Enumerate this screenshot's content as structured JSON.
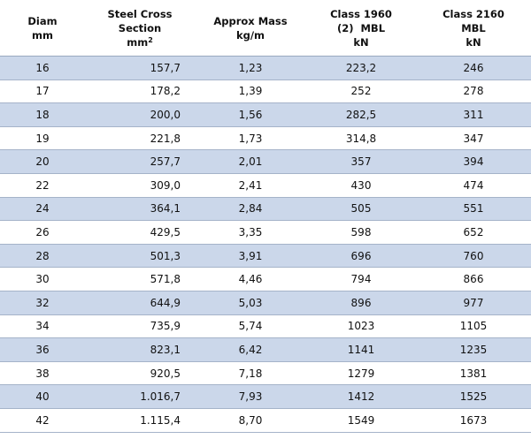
{
  "headers": {
    "diam": [
      "Diam",
      "mm"
    ],
    "steel": [
      "Steel Cross",
      "Section",
      "mm",
      "2"
    ],
    "mass": [
      "Approx Mass",
      "kg/m"
    ],
    "class1960": [
      "Class 1960",
      "(2)  MBL",
      "kN"
    ],
    "class2160": [
      "Class 2160",
      "MBL",
      "kN"
    ]
  },
  "rows": [
    [
      "16",
      "157,7",
      "1,23",
      "223,2",
      "246"
    ],
    [
      "17",
      "178,2",
      "1,39",
      "252",
      "278"
    ],
    [
      "18",
      "200,0",
      "1,56",
      "282,5",
      "311"
    ],
    [
      "19",
      "221,8",
      "1,73",
      "314,8",
      "347"
    ],
    [
      "20",
      "257,7",
      "2,01",
      "357",
      "394"
    ],
    [
      "22",
      "309,0",
      "2,41",
      "430",
      "474"
    ],
    [
      "24",
      "364,1",
      "2,84",
      "505",
      "551"
    ],
    [
      "26",
      "429,5",
      "3,35",
      "598",
      "652"
    ],
    [
      "28",
      "501,3",
      "3,91",
      "696",
      "760"
    ],
    [
      "30",
      "571,8",
      "4,46",
      "794",
      "866"
    ],
    [
      "32",
      "644,9",
      "5,03",
      "896",
      "977"
    ],
    [
      "34",
      "735,9",
      "5,74",
      "1023",
      "1105"
    ],
    [
      "36",
      "823,1",
      "6,42",
      "1141",
      "1235"
    ],
    [
      "38",
      "920,5",
      "7,18",
      "1279",
      "1381"
    ],
    [
      "40",
      "1.016,7",
      "7,93",
      "1412",
      "1525"
    ],
    [
      "42",
      "1.115,4",
      "8,70",
      "1549",
      "1673"
    ]
  ],
  "colors": {
    "band": "#cbd7ea",
    "rule": "#a5b3c9"
  }
}
